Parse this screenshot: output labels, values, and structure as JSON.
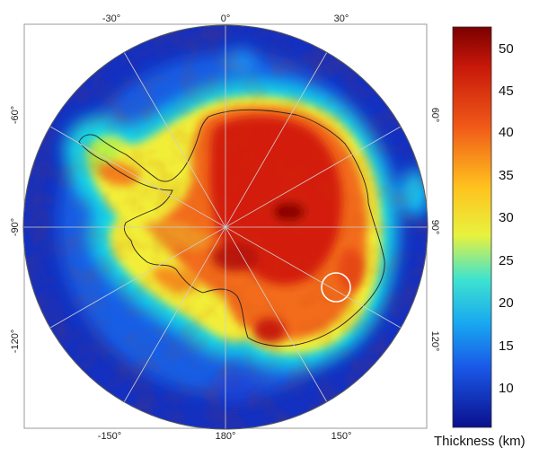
{
  "map": {
    "longitude_labels": {
      "top": [
        "-30°",
        "0°",
        "30°"
      ],
      "bottom": [
        "-150°",
        "180°",
        "150°"
      ],
      "left": [
        "-60°",
        "-90°",
        "-120°"
      ],
      "right": [
        "60°",
        "90°",
        "120°"
      ]
    }
  },
  "colorbar": {
    "title": "Thickness (km)",
    "ticks": [
      "50",
      "45",
      "40",
      "35",
      "30",
      "25",
      "20",
      "15",
      "10"
    ],
    "colors": [
      "#7a0000",
      "#e8230c",
      "#f06a1d",
      "#ffcc22",
      "#e4f040",
      "#45e0d0",
      "#1a80ff",
      "#0a1a9c"
    ]
  },
  "map_colors": {
    "ocean_deep": "#1330c0",
    "ocean": "#1a64e8",
    "shelf": "#19d7e6",
    "margin": "#f2ee38",
    "crust": "#f26c1e",
    "thick": "#cc1a0a"
  }
}
